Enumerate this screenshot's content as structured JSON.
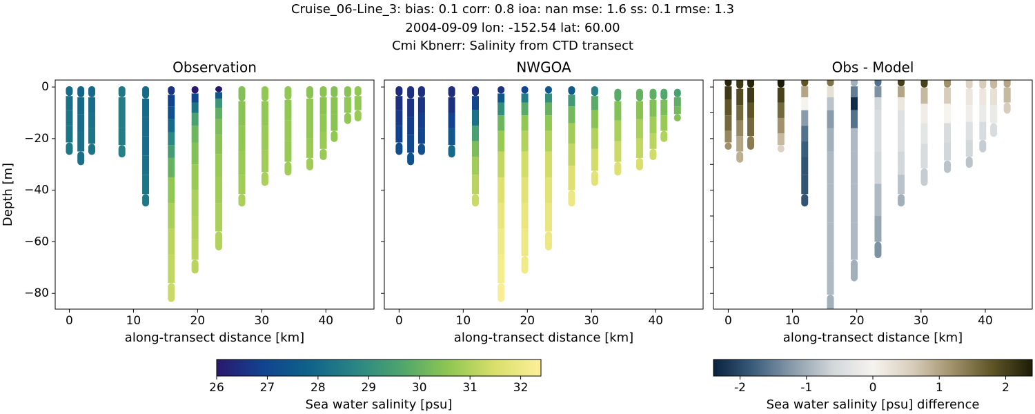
{
  "title": [
    "Cruise_06-Line_3: bias: 0.1  corr: 0.8  ioa: nan  mse: 1.6  ss: 0.1  rmse: 1.3",
    "2004-09-09 lon: -152.54 lat: 60.00",
    "Cmi Kbnerr: Salinity from CTD transect"
  ],
  "colorbars": [
    {
      "label": "Sea water salinity [psu]",
      "lim": [
        26,
        32.4
      ],
      "ticks": [
        26,
        27,
        28,
        29,
        30,
        31,
        32
      ],
      "colors": [
        "#2a186c",
        "#11438f",
        "#10628a",
        "#2a8585",
        "#4fa56d",
        "#8fc652",
        "#d9df6b",
        "#fdef9a"
      ]
    },
    {
      "label": "Sea water salinity [psu] difference",
      "lim": [
        -2.4,
        2.4
      ],
      "ticks": [
        -2,
        -1,
        0,
        1,
        2
      ],
      "colors": [
        "#07223f",
        "#3b5d7c",
        "#8a9cab",
        "#d2d7da",
        "#f6f3ef",
        "#d8cdbb",
        "#a0916a",
        "#5e5426",
        "#1d1d06"
      ]
    }
  ],
  "chart_data": [
    {
      "type": "scatter",
      "title": "Observation",
      "xlabel": "along-transect distance [km]",
      "ylabel": "Depth [m]",
      "colorbar": 0,
      "xlim": [
        -2.2,
        47.5
      ],
      "ylim": [
        -86.1,
        2.7
      ],
      "xticks": [
        0,
        10,
        20,
        30,
        40
      ],
      "yticks": [
        {
          "value": 0,
          "label": "0"
        },
        {
          "value": -20,
          "label": "−20"
        },
        {
          "value": -40,
          "label": "−40"
        },
        {
          "value": -60,
          "label": "−60"
        },
        {
          "value": -80,
          "label": "−80"
        }
      ],
      "ytick_labels": true,
      "stations": [
        {
          "x": 0,
          "depth": [
            -1,
            -6,
            -12,
            -18,
            -25
          ],
          "values": [
            28.1,
            28.2,
            28.3,
            28.3,
            28.4
          ]
        },
        {
          "x": 1.8,
          "depth": [
            -1,
            -7,
            -14,
            -21,
            -29
          ],
          "values": [
            27.9,
            28.0,
            28.1,
            28.2,
            28.2
          ]
        },
        {
          "x": 3.5,
          "depth": [
            -1,
            -7,
            -13,
            -19,
            -25
          ],
          "values": [
            28.0,
            28.1,
            28.2,
            28.3,
            28.3
          ]
        },
        {
          "x": 8.2,
          "depth": [
            -1,
            -7,
            -13,
            -19,
            -26
          ],
          "values": [
            28.4,
            28.5,
            28.5,
            28.5,
            28.6
          ]
        },
        {
          "x": 11.9,
          "depth": [
            -1,
            -8,
            -15,
            -23,
            -30,
            -38,
            -45
          ],
          "values": [
            28.0,
            28.0,
            28.1,
            28.1,
            28.2,
            28.3,
            28.4
          ]
        },
        {
          "x": 15.9,
          "depth": [
            -1,
            -5,
            -10,
            -15,
            -20,
            -25,
            -30,
            -40,
            -50,
            -60,
            -70,
            -82
          ],
          "values": [
            26.6,
            26.9,
            27.3,
            28.0,
            28.8,
            29.4,
            30.0,
            30.6,
            30.9,
            31.1,
            31.2,
            31.3
          ]
        },
        {
          "x": 19.6,
          "depth": [
            -1,
            -4,
            -8,
            -12,
            -18,
            -25,
            -35,
            -45,
            -55,
            -63,
            -71
          ],
          "values": [
            26.0,
            27.0,
            28.3,
            29.5,
            30.1,
            30.4,
            30.7,
            30.9,
            31.0,
            31.1,
            31.1
          ]
        },
        {
          "x": 23.3,
          "depth": [
            -1,
            -3,
            -6,
            -10,
            -15,
            -22,
            -30,
            -40,
            -50,
            -62
          ],
          "values": [
            26.0,
            27.5,
            29.2,
            29.9,
            30.3,
            30.5,
            30.7,
            30.8,
            30.9,
            31.0
          ]
        },
        {
          "x": 26.9,
          "depth": [
            -1,
            -10,
            -20,
            -30,
            -38,
            -45
          ],
          "values": [
            30.4,
            30.5,
            30.6,
            30.7,
            30.8,
            30.9
          ]
        },
        {
          "x": 30.5,
          "depth": [
            -1,
            -10,
            -20,
            -29,
            -37
          ],
          "values": [
            30.6,
            30.6,
            30.7,
            30.8,
            30.9
          ]
        },
        {
          "x": 34.1,
          "depth": [
            -1,
            -9,
            -17,
            -25,
            -33
          ],
          "values": [
            30.6,
            30.6,
            30.7,
            30.7,
            30.8
          ]
        },
        {
          "x": 37.5,
          "depth": [
            -1,
            -8,
            -16,
            -24,
            -31
          ],
          "values": [
            30.5,
            30.6,
            30.6,
            30.7,
            30.8
          ]
        },
        {
          "x": 39.6,
          "depth": [
            -1,
            -7,
            -14,
            -21,
            -27
          ],
          "values": [
            30.5,
            30.5,
            30.6,
            30.7,
            30.7
          ]
        },
        {
          "x": 41.3,
          "depth": [
            -1,
            -7,
            -14,
            -20
          ],
          "values": [
            30.4,
            30.5,
            30.5,
            30.6
          ]
        },
        {
          "x": 43.4,
          "depth": [
            -1,
            -7,
            -13
          ],
          "values": [
            30.5,
            30.6,
            30.6
          ]
        },
        {
          "x": 45.0,
          "depth": [
            -1,
            -6,
            -12
          ],
          "values": [
            30.6,
            30.6,
            30.7
          ]
        }
      ]
    },
    {
      "type": "scatter",
      "title": "NWGOA",
      "xlabel": "along-transect distance [km]",
      "colorbar": 0,
      "xlim": [
        -2.3,
        47.4
      ],
      "ylim": [
        -86.1,
        2.7
      ],
      "xticks": [
        0,
        10,
        20,
        30,
        40
      ],
      "yticks": [
        0,
        -20,
        -40,
        -60,
        -80
      ],
      "ytick_labels": false,
      "stations": [
        {
          "x": 0,
          "depth": [
            -1,
            -6,
            -12,
            -18,
            -25
          ],
          "values": [
            26.4,
            26.5,
            26.7,
            26.9,
            27.2
          ]
        },
        {
          "x": 1.8,
          "depth": [
            -1,
            -8,
            -15,
            -22,
            -29
          ],
          "values": [
            26.5,
            26.6,
            26.8,
            27.1,
            27.4
          ]
        },
        {
          "x": 3.5,
          "depth": [
            -1,
            -7,
            -13,
            -19,
            -25
          ],
          "values": [
            26.5,
            26.6,
            26.8,
            27.0,
            27.3
          ]
        },
        {
          "x": 8.2,
          "depth": [
            -1,
            -7,
            -13,
            -19,
            -26
          ],
          "values": [
            26.4,
            26.5,
            26.9,
            27.5,
            28.0
          ]
        },
        {
          "x": 11.9,
          "depth": [
            -1,
            -6,
            -12,
            -18,
            -24,
            -30,
            -38,
            -45
          ],
          "values": [
            26.5,
            27.0,
            28.2,
            29.5,
            30.3,
            30.8,
            31.1,
            31.3
          ]
        },
        {
          "x": 15.9,
          "depth": [
            -1,
            -4,
            -8,
            -14,
            -20,
            -30,
            -40,
            -50,
            -60,
            -70,
            -82
          ],
          "values": [
            26.6,
            27.5,
            29.0,
            30.1,
            30.7,
            31.2,
            31.6,
            31.9,
            32.1,
            32.2,
            32.3
          ]
        },
        {
          "x": 19.6,
          "depth": [
            -1,
            -4,
            -8,
            -14,
            -20,
            -30,
            -40,
            -50,
            -60,
            -71
          ],
          "values": [
            27.0,
            28.5,
            29.8,
            30.6,
            31.0,
            31.4,
            31.7,
            31.9,
            32.0,
            32.1
          ]
        },
        {
          "x": 23.3,
          "depth": [
            -1,
            -4,
            -8,
            -14,
            -20,
            -30,
            -40,
            -50,
            -62
          ],
          "values": [
            27.5,
            29.0,
            30.0,
            30.6,
            31.0,
            31.4,
            31.7,
            31.9,
            32.0
          ]
        },
        {
          "x": 26.9,
          "depth": [
            -1,
            -5,
            -10,
            -18,
            -26,
            -35,
            -45
          ],
          "values": [
            27.6,
            29.3,
            30.2,
            30.8,
            31.2,
            31.6,
            32.0
          ]
        },
        {
          "x": 30.5,
          "depth": [
            -1,
            -6,
            -12,
            -20,
            -28,
            -37
          ],
          "values": [
            28.6,
            29.8,
            30.5,
            31.0,
            31.4,
            31.7
          ]
        },
        {
          "x": 34.1,
          "depth": [
            -2,
            -9,
            -17,
            -25,
            -33
          ],
          "values": [
            29.8,
            30.4,
            30.9,
            31.3,
            31.6
          ]
        },
        {
          "x": 37.5,
          "depth": [
            -2,
            -9,
            -16,
            -24,
            -31
          ],
          "values": [
            30.0,
            30.5,
            30.9,
            31.2,
            31.5
          ]
        },
        {
          "x": 39.6,
          "depth": [
            -2,
            -8,
            -15,
            -21,
            -27
          ],
          "values": [
            29.9,
            30.4,
            30.8,
            31.1,
            31.4
          ]
        },
        {
          "x": 41.3,
          "depth": [
            -2,
            -8,
            -14,
            -20
          ],
          "values": [
            29.7,
            30.3,
            30.7,
            31.0
          ]
        },
        {
          "x": 43.4,
          "depth": [
            -2,
            -6,
            -9,
            -12
          ],
          "values": [
            29.5,
            29.9,
            30.2,
            30.4
          ]
        }
      ]
    },
    {
      "type": "scatter",
      "title": "Obs - Model",
      "xlabel": "along-transect distance [km]",
      "colorbar": 1,
      "xlim": [
        -2.3,
        47.3
      ],
      "ylim": [
        -86.1,
        2.7
      ],
      "xticks": [
        0,
        10,
        20,
        30,
        40
      ],
      "yticks": [
        0,
        -10,
        -20,
        -30,
        -40,
        -50,
        -60,
        -70,
        -80
      ],
      "ytick_labels": false,
      "stations": [
        {
          "x": 0,
          "depth": [
            2.5,
            -2,
            -8,
            -14,
            -20,
            -23
          ],
          "values": [
            2.3,
            2.1,
            1.8,
            1.6,
            1.3,
            1.2
          ]
        },
        {
          "x": 1.8,
          "depth": [
            2.5,
            -4,
            -10,
            -16,
            -22,
            -28
          ],
          "values": [
            2.1,
            1.9,
            1.6,
            1.3,
            1.0,
            0.9
          ]
        },
        {
          "x": 3.5,
          "depth": [
            2.5,
            -3,
            -9,
            -15,
            -23
          ],
          "values": [
            2.3,
            2.1,
            1.8,
            1.6,
            1.4
          ]
        },
        {
          "x": 8.2,
          "depth": [
            2.5,
            -3,
            -9,
            -15,
            -21,
            -24
          ],
          "values": [
            2.4,
            2.0,
            1.6,
            1.2,
            0.8,
            0.5
          ]
        },
        {
          "x": 11.9,
          "depth": [
            2.5,
            -2,
            -6,
            -12,
            -18,
            -24,
            -30,
            -38,
            -45
          ],
          "values": [
            1.8,
            1.0,
            0.0,
            -1.2,
            -1.6,
            -1.8,
            -1.9,
            -1.9,
            -1.9
          ]
        },
        {
          "x": 15.9,
          "depth": [
            2.5,
            -2,
            -6,
            -12,
            -20,
            -30,
            -45,
            -60,
            -75,
            -86
          ],
          "values": [
            1.5,
            0.3,
            -0.8,
            -1.2,
            -1.0,
            -0.9,
            -0.9,
            -0.9,
            -0.9,
            -1.0
          ]
        },
        {
          "x": 19.6,
          "depth": [
            2.5,
            -2,
            -6,
            -12,
            -20,
            -30,
            -45,
            -60,
            -74
          ],
          "values": [
            -1.0,
            -1.5,
            -2.3,
            -1.6,
            -0.9,
            -0.9,
            -0.9,
            -0.9,
            -1.0
          ]
        },
        {
          "x": 23.3,
          "depth": [
            2.5,
            -2,
            -6,
            -12,
            -20,
            -30,
            -45,
            -55,
            -65
          ],
          "values": [
            -1.6,
            -1.3,
            -0.6,
            -0.5,
            -0.5,
            -0.6,
            -0.9,
            -1.1,
            -1.3
          ]
        },
        {
          "x": 26.9,
          "depth": [
            2.5,
            -2,
            -6,
            -12,
            -20,
            -30,
            -38,
            -45
          ],
          "values": [
            2.0,
            1.0,
            0.2,
            -0.4,
            -0.4,
            -0.6,
            -0.8,
            -1.0
          ]
        },
        {
          "x": 30.5,
          "depth": [
            2.5,
            -3,
            -10,
            -18,
            -26,
            -37
          ],
          "values": [
            2.0,
            0.8,
            0.1,
            -0.3,
            -0.5,
            -0.7
          ]
        },
        {
          "x": 34.1,
          "depth": [
            2.5,
            -3,
            -10,
            -18,
            -25,
            -32
          ],
          "values": [
            1.2,
            0.6,
            0.0,
            -0.5,
            -0.6,
            -0.8
          ]
        },
        {
          "x": 37.5,
          "depth": [
            2.5,
            -4,
            -10,
            -17,
            -24,
            -30
          ],
          "values": [
            0.5,
            0.2,
            -0.1,
            -0.4,
            -0.6,
            -0.8
          ]
        },
        {
          "x": 39.6,
          "depth": [
            2.5,
            -4,
            -10,
            -17,
            -24
          ],
          "values": [
            0.6,
            0.2,
            -0.2,
            -0.5,
            -0.7
          ]
        },
        {
          "x": 41.3,
          "depth": [
            2.5,
            -4,
            -10,
            -18
          ],
          "values": [
            0.8,
            0.3,
            -0.2,
            -0.5
          ]
        },
        {
          "x": 43.4,
          "depth": [
            2.5,
            -3,
            -9
          ],
          "values": [
            1.0,
            0.8,
            0.6
          ]
        }
      ]
    }
  ]
}
